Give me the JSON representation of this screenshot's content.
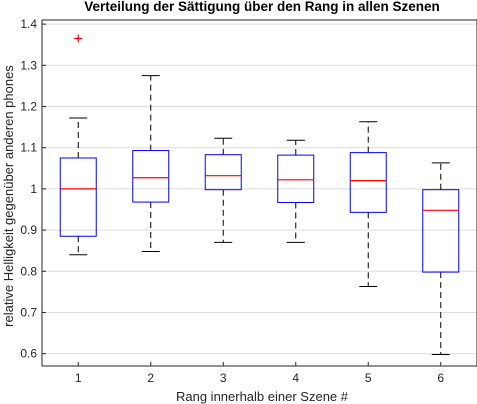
{
  "chart_data": {
    "type": "boxplot",
    "title": "Verteilung der Sättigung über den Rang in allen Szenen",
    "xlabel": "Rang innerhalb einer Szene #",
    "ylabel": "relative Helligkeit gegenüber anderen phones",
    "categories": [
      "1",
      "2",
      "3",
      "4",
      "5",
      "6"
    ],
    "yticks": [
      "0.6",
      "0.7",
      "0.8",
      "0.9",
      "1",
      "1.1",
      "1.2",
      "1.3",
      "1.4"
    ],
    "ylim": [
      0.57,
      1.41
    ],
    "grid": "horizontal",
    "boxes": [
      {
        "category": "1",
        "whisker_low": 0.84,
        "q1": 0.885,
        "median": 1.0,
        "q3": 1.075,
        "whisker_high": 1.172,
        "outliers": [
          1.365
        ]
      },
      {
        "category": "2",
        "whisker_low": 0.848,
        "q1": 0.968,
        "median": 1.027,
        "q3": 1.093,
        "whisker_high": 1.275,
        "outliers": []
      },
      {
        "category": "3",
        "whisker_low": 0.87,
        "q1": 0.998,
        "median": 1.032,
        "q3": 1.083,
        "whisker_high": 1.123,
        "outliers": []
      },
      {
        "category": "4",
        "whisker_low": 0.87,
        "q1": 0.967,
        "median": 1.022,
        "q3": 1.082,
        "whisker_high": 1.118,
        "outliers": []
      },
      {
        "category": "5",
        "whisker_low": 0.763,
        "q1": 0.943,
        "median": 1.02,
        "q3": 1.088,
        "whisker_high": 1.163,
        "outliers": []
      },
      {
        "category": "6",
        "whisker_low": 0.598,
        "q1": 0.798,
        "median": 0.948,
        "q3": 0.998,
        "whisker_high": 1.063,
        "outliers": []
      }
    ],
    "colors": {
      "box": "#0000ff",
      "median": "#ff0000",
      "whisker": "#000000",
      "outlier": "#ff0000",
      "grid": "#dedede",
      "axis": "#262626"
    }
  }
}
